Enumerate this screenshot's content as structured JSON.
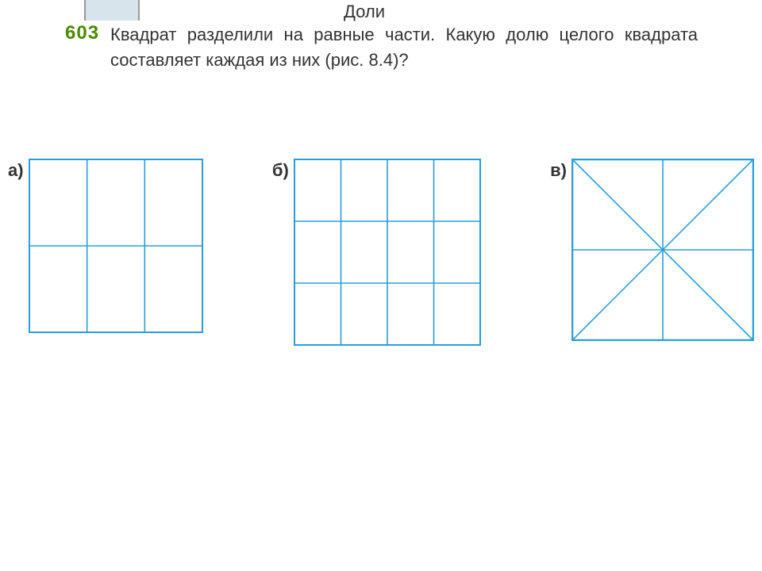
{
  "header": "Доли",
  "problem": {
    "number": "603",
    "text": "Квадрат разделили на равные части. Какую долю целого квадрата составляет каждая из них (рис. 8.4)?"
  },
  "figures": {
    "a": {
      "label": "а)",
      "type": "grid",
      "size": 220,
      "cols": 3,
      "rows": 2,
      "stroke": "#2a9fd6",
      "stroke_width": 2
    },
    "b": {
      "label": "б)",
      "type": "grid",
      "size": 236,
      "cols": 4,
      "rows": 3,
      "stroke": "#2a9fd6",
      "stroke_width": 2
    },
    "c": {
      "label": "в)",
      "type": "diagonals",
      "size": 230,
      "stroke": "#2a9fd6",
      "stroke_width": 2.5,
      "line_width": 1.6
    }
  }
}
